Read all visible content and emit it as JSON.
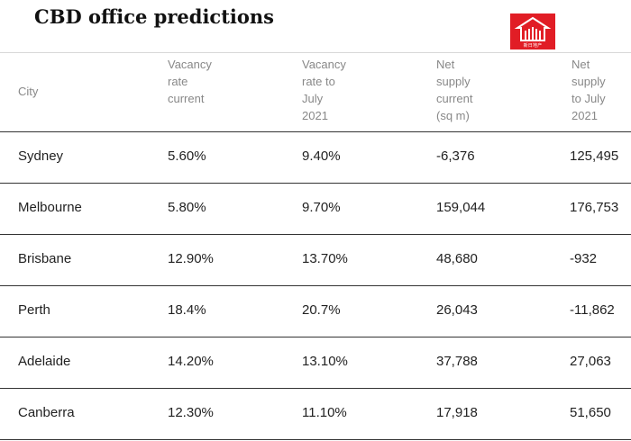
{
  "title": "CBD office predictions",
  "logo": {
    "name": "logo-house-icon",
    "color": "#e11d25",
    "text": "新日地产",
    "subtext": "AUYOURAUT.COM"
  },
  "table": {
    "headers": [
      [
        "City"
      ],
      [
        "Vacancy",
        "rate",
        "current"
      ],
      [
        "Vacancy",
        "rate to",
        "July",
        "2021"
      ],
      [
        "Net",
        "supply",
        "current",
        "(sq m)"
      ],
      [
        "Net",
        "supply",
        "to July",
        "2021"
      ]
    ],
    "rows": [
      [
        "Sydney",
        "5.60%",
        "9.40%",
        "-6,376",
        "125,495"
      ],
      [
        "Melbourne",
        "5.80%",
        "9.70%",
        "159,044",
        "176,753"
      ],
      [
        "Brisbane",
        "12.90%",
        "13.70%",
        "48,680",
        "-932"
      ],
      [
        "Perth",
        "18.4%",
        "20.7%",
        "26,043",
        "-11,862"
      ],
      [
        "Adelaide",
        "14.20%",
        "13.10%",
        "37,788",
        "27,063"
      ],
      [
        "Canberra",
        "12.30%",
        "11.10%",
        "17,918",
        "51,650"
      ]
    ]
  }
}
